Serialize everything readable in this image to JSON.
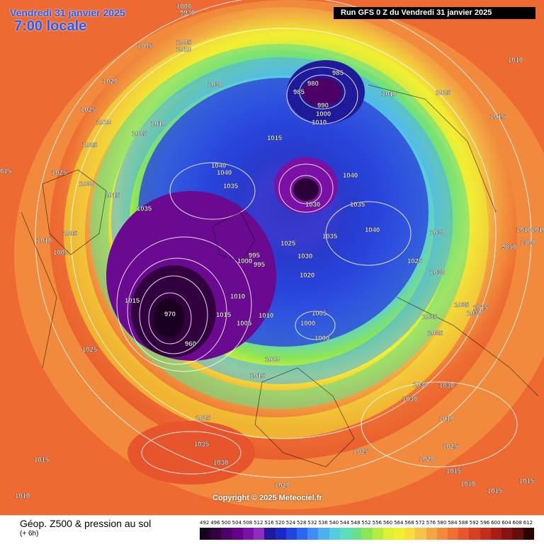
{
  "header": {
    "date": "Vendredi 31 janvier 2025",
    "local_time": "7:00 locale",
    "run": "Run GFS 0 Z du Vendredi 31 janvier 2025"
  },
  "copyright": "Copyright © 2025 Meteociel.fr",
  "footer": {
    "title": "Géop. Z500 & pression au sol",
    "subtitle": "(+ 6h)"
  },
  "scale": {
    "values": [
      "492",
      "496",
      "500",
      "504",
      "508",
      "512",
      "516",
      "520",
      "524",
      "528",
      "532",
      "536",
      "540",
      "544",
      "548",
      "552",
      "556",
      "560",
      "564",
      "568",
      "572",
      "576",
      "580",
      "584",
      "588",
      "592",
      "596",
      "600",
      "604",
      "608",
      "612"
    ],
    "colors": [
      "#1a0020",
      "#33003f",
      "#4d0066",
      "#66008a",
      "#7a10a6",
      "#8c2dbf",
      "#1f1a99",
      "#1a28c4",
      "#1f44e0",
      "#2a66f0",
      "#3f8cf5",
      "#4fb0f0",
      "#55cce0",
      "#5cddbd",
      "#66e08a",
      "#8ae655",
      "#b3ed3d",
      "#d9f233",
      "#f2ef33",
      "#f7de3d",
      "#f5c447",
      "#f2a544",
      "#f28a3d",
      "#ee6f33",
      "#e6552b",
      "#d94022",
      "#c22e1c",
      "#a61f17",
      "#871414",
      "#660c0c",
      "#300000"
    ]
  },
  "pressure_labels": [
    {
      "text": "1000"
    },
    {
      "text": "9930"
    },
    {
      "text": "1005"
    },
    {
      "text": "1005"
    },
    {
      "text": "1010"
    },
    {
      "text": "1020"
    },
    {
      "text": "1030"
    },
    {
      "text": "1025"
    },
    {
      "text": "1020"
    },
    {
      "text": "1005"
    },
    {
      "text": "1010"
    },
    {
      "text": "1025"
    },
    {
      "text": "015"
    },
    {
      "text": "1025"
    },
    {
      "text": "1030"
    },
    {
      "text": "1040"
    },
    {
      "text": "1040"
    },
    {
      "text": "1035"
    },
    {
      "text": "1015"
    },
    {
      "text": "1035"
    },
    {
      "text": "1005"
    },
    {
      "text": "1010"
    },
    {
      "text": "1005"
    },
    {
      "text": "985"
    },
    {
      "text": "980"
    },
    {
      "text": "985"
    },
    {
      "text": "990"
    },
    {
      "text": "1000"
    },
    {
      "text": "1010"
    },
    {
      "text": "1010"
    },
    {
      "text": "1015"
    },
    {
      "text": "1025"
    },
    {
      "text": "1015"
    },
    {
      "text": "1010"
    },
    {
      "text": "1040"
    },
    {
      "text": "1030"
    },
    {
      "text": "1035"
    },
    {
      "text": "1040"
    },
    {
      "text": "1035"
    },
    {
      "text": "1030"
    },
    {
      "text": "1025"
    },
    {
      "text": "1030"
    },
    {
      "text": "995"
    },
    {
      "text": "1000"
    },
    {
      "text": "995"
    },
    {
      "text": "1020"
    },
    {
      "text": "1025"
    },
    {
      "text": "1015"
    },
    {
      "text": "970"
    },
    {
      "text": "1010"
    },
    {
      "text": "1015"
    },
    {
      "text": "1005"
    },
    {
      "text": "1010"
    },
    {
      "text": "1005"
    },
    {
      "text": "1000"
    },
    {
      "text": "1000"
    },
    {
      "text": "960"
    },
    {
      "text": "1030"
    },
    {
      "text": "1035"
    },
    {
      "text": "1035"
    },
    {
      "text": "1035"
    },
    {
      "text": "1025"
    },
    {
      "text": "1020"
    },
    {
      "text": "1015"
    },
    {
      "text": "1030"
    },
    {
      "text": "1030"
    },
    {
      "text": "1030"
    },
    {
      "text": "1025"
    },
    {
      "text": "1035"
    },
    {
      "text": "1025"
    },
    {
      "text": "1015"
    },
    {
      "text": "1030"
    },
    {
      "text": "1010"
    },
    {
      "text": "1020"
    },
    {
      "text": "1025"
    },
    {
      "text": "1015"
    },
    {
      "text": "1020"
    },
    {
      "text": "1015"
    },
    {
      "text": "1010"
    },
    {
      "text": "1015"
    },
    {
      "text": "1010"
    },
    {
      "text": "1010"
    },
    {
      "text": "1010"
    },
    {
      "text": "9850"
    },
    {
      "text": "1400"
    },
    {
      "text": "1030"
    },
    {
      "text": "1015"
    }
  ]
}
